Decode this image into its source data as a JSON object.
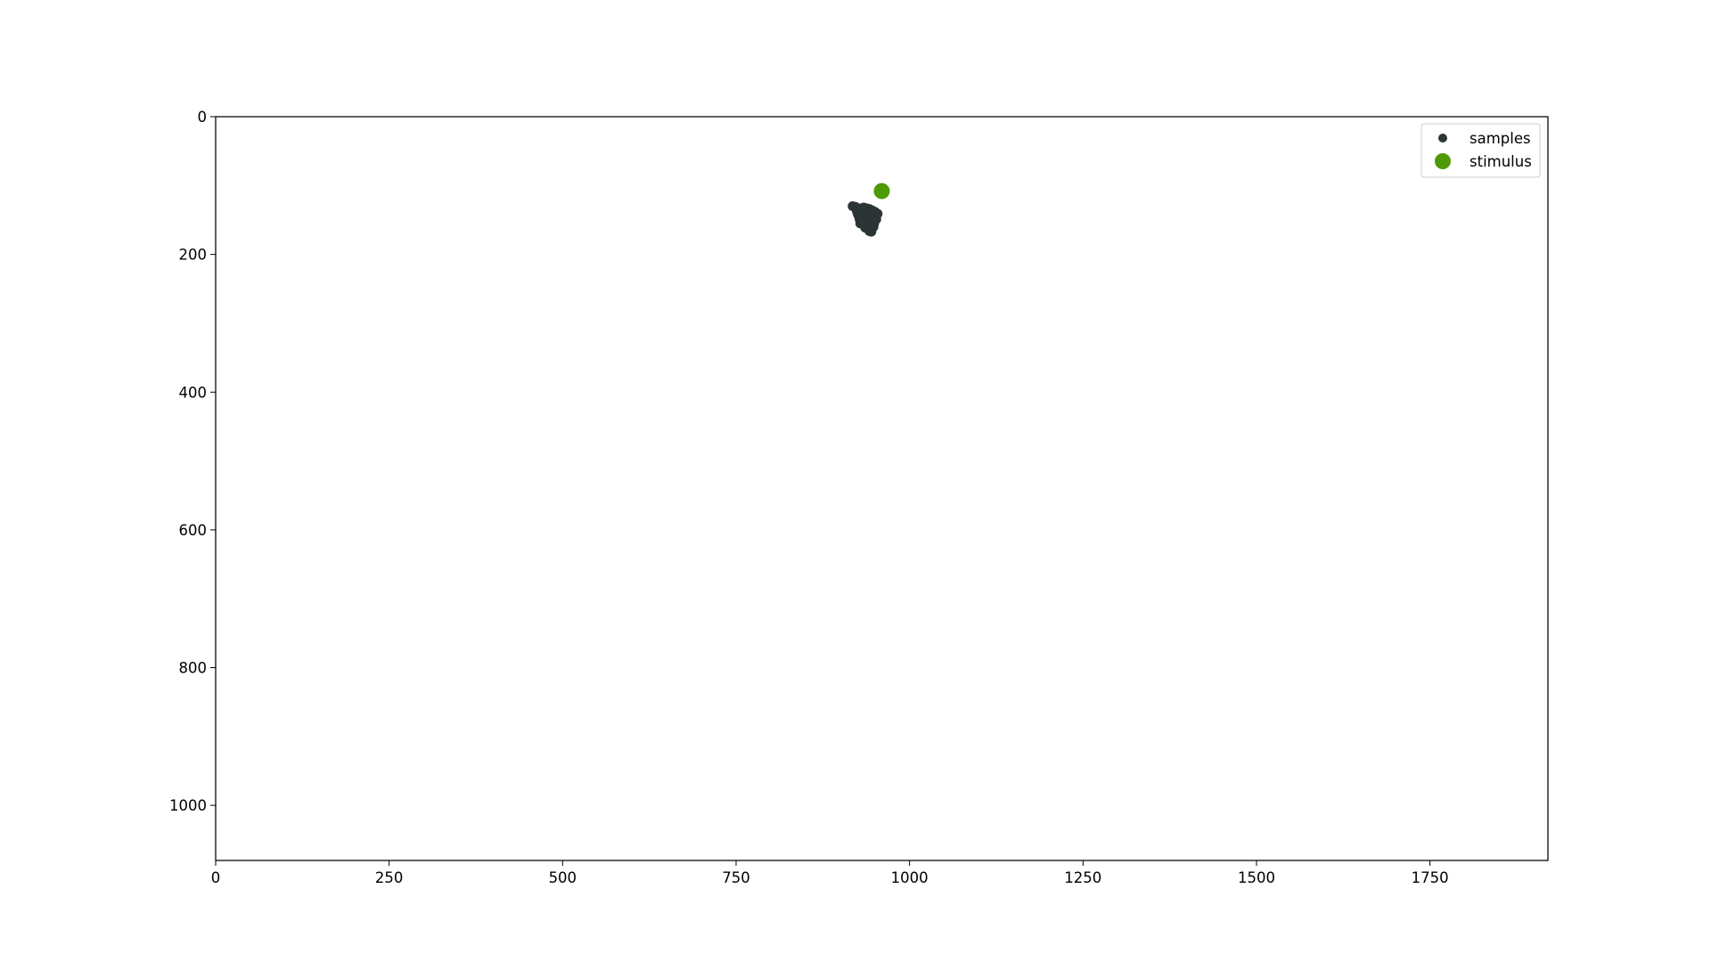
{
  "chart_data": {
    "type": "scatter",
    "title": "",
    "xlabel": "",
    "ylabel": "",
    "xlim": [
      0,
      1920
    ],
    "ylim": [
      1080,
      0
    ],
    "y_inverted": true,
    "grid": false,
    "legend": {
      "placement": "top-right",
      "entries": [
        "samples",
        "stimulus"
      ]
    },
    "x_ticks": [
      0,
      250,
      500,
      750,
      1000,
      1250,
      1500,
      1750
    ],
    "y_ticks": [
      0,
      200,
      400,
      600,
      800,
      1000
    ],
    "series": [
      {
        "name": "samples",
        "color": "#2d3436",
        "marker": "small-circle",
        "points": [
          [
            918,
            130
          ],
          [
            922,
            131
          ],
          [
            926,
            134
          ],
          [
            930,
            133
          ],
          [
            934,
            132
          ],
          [
            938,
            133
          ],
          [
            942,
            134
          ],
          [
            946,
            136
          ],
          [
            950,
            138
          ],
          [
            954,
            141
          ],
          [
            924,
            137
          ],
          [
            928,
            140
          ],
          [
            932,
            138
          ],
          [
            936,
            139
          ],
          [
            940,
            140
          ],
          [
            944,
            141
          ],
          [
            948,
            143
          ],
          [
            926,
            143
          ],
          [
            930,
            145
          ],
          [
            934,
            144
          ],
          [
            938,
            146
          ],
          [
            942,
            147
          ],
          [
            946,
            148
          ],
          [
            950,
            146
          ],
          [
            928,
            149
          ],
          [
            932,
            151
          ],
          [
            936,
            150
          ],
          [
            940,
            152
          ],
          [
            944,
            153
          ],
          [
            948,
            151
          ],
          [
            929,
            155
          ],
          [
            933,
            156
          ],
          [
            937,
            157
          ],
          [
            941,
            158
          ],
          [
            945,
            156
          ],
          [
            949,
            155
          ],
          [
            936,
            161
          ],
          [
            940,
            162
          ],
          [
            944,
            161
          ],
          [
            948,
            160
          ],
          [
            942,
            166
          ],
          [
            945,
            167
          ],
          [
            931,
            147
          ],
          [
            939,
            143
          ],
          [
            943,
            136
          ],
          [
            935,
            135
          ],
          [
            947,
            145
          ],
          [
            952,
            149
          ],
          [
            925,
            140
          ],
          [
            951,
            143
          ]
        ]
      },
      {
        "name": "stimulus",
        "color": "#4e9a06",
        "marker": "large-circle",
        "points": [
          [
            960,
            108
          ]
        ]
      }
    ]
  }
}
